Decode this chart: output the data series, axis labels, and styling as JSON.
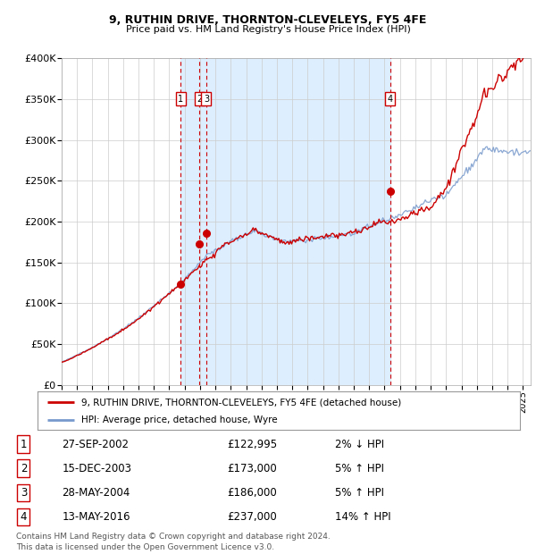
{
  "title": "9, RUTHIN DRIVE, THORNTON-CLEVELEYS, FY5 4FE",
  "subtitle": "Price paid vs. HM Land Registry's House Price Index (HPI)",
  "ylim": [
    0,
    400000
  ],
  "yticks": [
    0,
    50000,
    100000,
    150000,
    200000,
    250000,
    300000,
    350000,
    400000
  ],
  "ytick_labels": [
    "£0",
    "£50K",
    "£100K",
    "£150K",
    "£200K",
    "£250K",
    "£300K",
    "£350K",
    "£400K"
  ],
  "xlim_start": 1995.0,
  "xlim_end": 2025.5,
  "sale_dates": [
    2002.74,
    2003.96,
    2004.41,
    2016.36
  ],
  "sale_prices": [
    122995,
    173000,
    186000,
    237000
  ],
  "sale_labels": [
    "1",
    "2",
    "3",
    "4"
  ],
  "property_color": "#cc0000",
  "hpi_color": "#7799cc",
  "shade_color": "#ddeeff",
  "dashed_color": "#cc0000",
  "legend_labels": [
    "9, RUTHIN DRIVE, THORNTON-CLEVELEYS, FY5 4FE (detached house)",
    "HPI: Average price, detached house, Wyre"
  ],
  "table_data": [
    [
      "1",
      "27-SEP-2002",
      "£122,995",
      "2% ↓ HPI"
    ],
    [
      "2",
      "15-DEC-2003",
      "£173,000",
      "5% ↑ HPI"
    ],
    [
      "3",
      "28-MAY-2004",
      "£186,000",
      "5% ↑ HPI"
    ],
    [
      "4",
      "13-MAY-2016",
      "£237,000",
      "14% ↑ HPI"
    ]
  ],
  "footnote": "Contains HM Land Registry data © Crown copyright and database right 2024.\nThis data is licensed under the Open Government Licence v3.0.",
  "bg_white": "#ffffff",
  "shade_alpha": 1.0,
  "grid_color": "#cccccc"
}
